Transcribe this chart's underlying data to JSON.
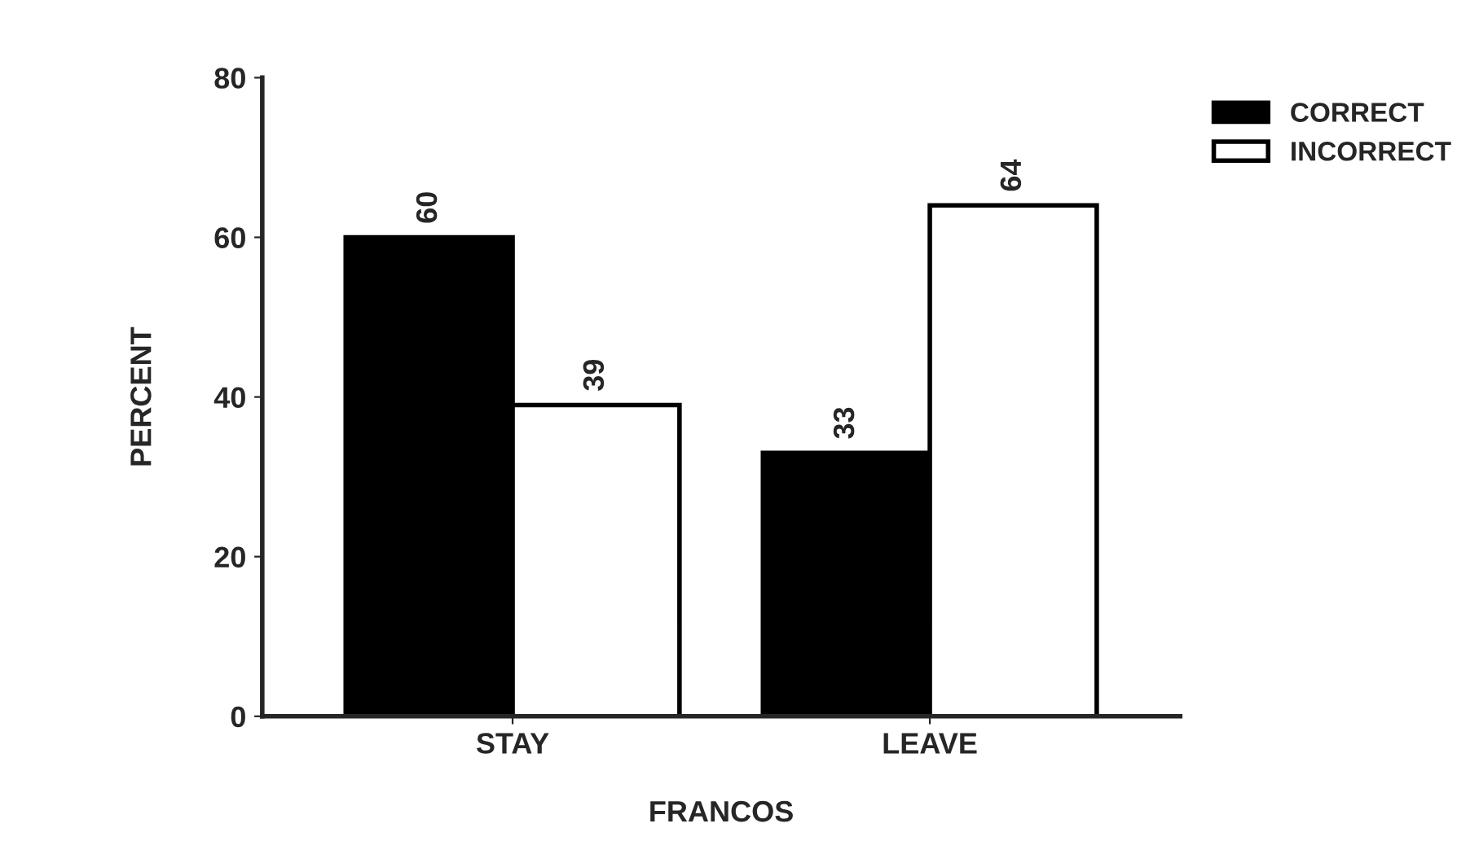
{
  "chart_data": {
    "type": "bar",
    "xlabel": "FRANCOS",
    "ylabel": "PERCENT",
    "categories": [
      "STAY",
      "LEAVE"
    ],
    "series": [
      {
        "name": "CORRECT",
        "color": "#000000",
        "values": [
          60,
          33
        ]
      },
      {
        "name": "INCORRECT",
        "color": "#ffffff",
        "values": [
          39,
          64
        ]
      }
    ],
    "ylim": [
      0,
      80
    ],
    "yticks": [
      0,
      20,
      40,
      60,
      80
    ],
    "data_labels": true,
    "legend": "top right",
    "grid": false
  }
}
